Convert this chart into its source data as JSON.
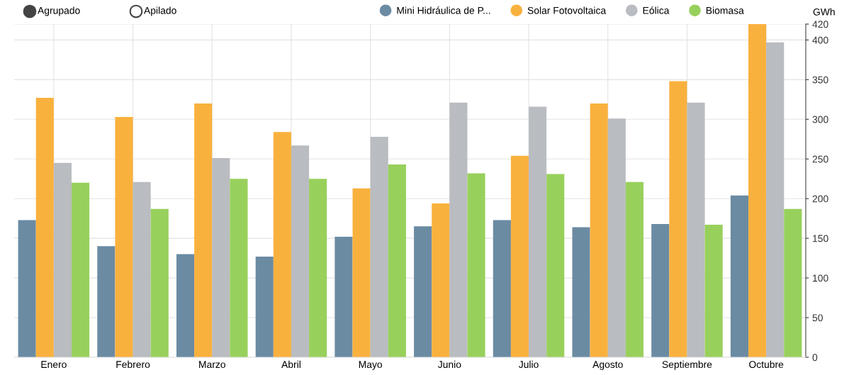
{
  "chart_data": {
    "type": "bar",
    "ylabel": "GWh",
    "annotations": [
      "Agrupado",
      "Apilado"
    ],
    "categories": [
      "Enero",
      "Febrero",
      "Marzo",
      "Abril",
      "Mayo",
      "Junio",
      "Julio",
      "Agosto",
      "Septiembre",
      "Octubre"
    ],
    "series": [
      {
        "name": "Mini Hidráulica de P...",
        "color": "#6b8ba3",
        "values": [
          173,
          140,
          130,
          127,
          152,
          165,
          173,
          164,
          168,
          204
        ]
      },
      {
        "name": "Solar Fotovoltaica",
        "color": "#f9b13e",
        "values": [
          327,
          303,
          320,
          284,
          213,
          194,
          254,
          320,
          348,
          420
        ]
      },
      {
        "name": "Eólica",
        "color": "#b9bcc0",
        "values": [
          245,
          221,
          251,
          267,
          278,
          321,
          316,
          301,
          321,
          397
        ]
      },
      {
        "name": "Biomasa",
        "color": "#98d05c",
        "values": [
          220,
          187,
          225,
          225,
          243,
          232,
          231,
          221,
          167,
          187
        ]
      }
    ],
    "ylim": [
      0,
      420
    ],
    "yticks": [
      0,
      50,
      100,
      150,
      200,
      250,
      300,
      350,
      400,
      420
    ],
    "grid": true,
    "legend": "top"
  }
}
